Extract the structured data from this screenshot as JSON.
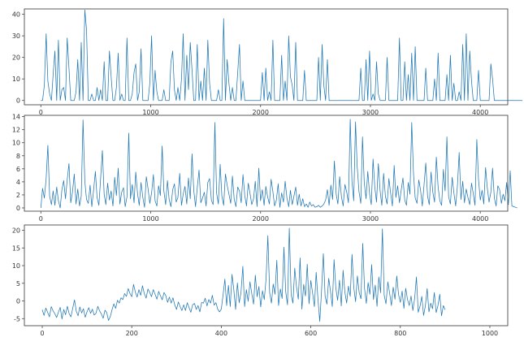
{
  "figure": {
    "background": "#ffffff",
    "line_color": "#1f77b4"
  },
  "chart_data": [
    {
      "type": "line",
      "title": "",
      "xlabel": "",
      "ylabel": "",
      "xlim": [
        -150,
        4250
      ],
      "ylim": [
        -2,
        42.5
      ],
      "xticks": [
        0,
        1000,
        2000,
        3000,
        4000
      ],
      "yticks": [
        0,
        10,
        20,
        30,
        40
      ],
      "x_start": 0,
      "x_step": 16,
      "values": [
        0,
        0,
        7,
        31,
        9,
        3,
        0,
        12,
        23,
        0,
        28,
        0,
        5,
        6,
        0,
        29,
        15,
        0,
        0,
        0,
        4,
        19,
        0,
        27,
        0,
        42,
        33,
        0,
        0,
        3,
        0,
        0,
        6,
        0,
        5,
        0,
        18,
        0,
        0,
        23,
        11,
        0,
        0,
        6,
        22,
        0,
        3,
        0,
        0,
        29,
        0,
        0,
        3,
        13,
        17,
        0,
        4,
        24,
        0,
        0,
        0,
        0,
        8,
        30,
        0,
        14,
        4,
        0,
        0,
        0,
        5,
        0,
        0,
        0,
        18,
        23,
        5,
        0,
        6,
        0,
        10,
        31,
        0,
        21,
        5,
        27,
        14,
        0,
        0,
        26,
        0,
        9,
        0,
        15,
        0,
        28,
        8,
        0,
        0,
        0,
        0,
        5,
        0,
        0,
        38,
        0,
        19,
        8,
        0,
        6,
        0,
        0,
        13,
        26,
        0,
        9,
        0,
        0,
        0,
        0,
        0,
        0,
        0,
        0,
        0,
        0,
        13,
        0,
        15,
        0,
        4,
        0,
        28,
        0,
        0,
        0,
        0,
        21,
        0,
        9,
        0,
        30,
        11,
        7,
        0,
        27,
        0,
        0,
        0,
        0,
        14,
        0,
        0,
        0,
        0,
        0,
        0,
        0,
        20,
        0,
        26,
        7,
        0,
        19,
        0,
        0,
        0,
        0,
        0,
        0,
        0,
        0,
        0,
        0,
        0,
        0,
        0,
        0,
        0,
        0,
        0,
        0,
        15,
        0,
        0,
        19,
        0,
        23,
        0,
        3,
        0,
        18,
        3,
        0,
        0,
        0,
        0,
        20,
        0,
        0,
        0,
        0,
        0,
        0,
        29,
        0,
        0,
        18,
        0,
        12,
        0,
        22,
        0,
        25,
        0,
        0,
        0,
        0,
        0,
        15,
        0,
        0,
        0,
        0,
        10,
        0,
        22,
        0,
        0,
        0,
        0,
        12,
        0,
        21,
        0,
        8,
        0,
        0,
        4,
        0,
        26,
        0,
        31,
        0,
        23,
        9,
        0,
        0,
        0,
        14,
        0,
        0,
        0,
        0,
        0,
        0,
        17,
        10,
        0,
        0,
        0,
        0,
        0,
        0,
        0,
        0,
        0,
        0,
        0,
        0,
        0,
        0,
        0,
        0,
        0
      ]
    },
    {
      "type": "line",
      "title": "",
      "xlabel": "",
      "ylabel": "",
      "xlim": [
        -150,
        4250
      ],
      "ylim": [
        -0.5,
        14.2
      ],
      "xticks": [
        0,
        1000,
        2000,
        3000,
        4000
      ],
      "yticks": [
        0,
        2,
        4,
        6,
        8,
        10,
        12,
        14
      ],
      "x_start": 0,
      "x_step": 16,
      "values": [
        0,
        3,
        1.5,
        4.5,
        9.6,
        1.8,
        0.5,
        2.6,
        0.4,
        3.2,
        1.1,
        0,
        2.8,
        4.2,
        1.4,
        4.3,
        6.8,
        0.8,
        2.4,
        5.2,
        0.6,
        2.9,
        0.3,
        1.8,
        13.5,
        4.1,
        1.3,
        0.7,
        3.5,
        0.2,
        2.7,
        5.6,
        1.6,
        0.4,
        4.4,
        8.8,
        2.1,
        0.5,
        3.8,
        1.2,
        2.6,
        0.3,
        4.7,
        1.9,
        6.1,
        0.6,
        2.4,
        3.1,
        0.2,
        1.7,
        11.5,
        1.4,
        3.6,
        0.8,
        5.5,
        2.2,
        0.4,
        3.9,
        1.6,
        0.1,
        4.8,
        2.9,
        0.7,
        2.3,
        5.1,
        1.1,
        0.3,
        3.4,
        1.9,
        9.5,
        2.6,
        0.5,
        4.2,
        1.3,
        0.2,
        2.8,
        3.7,
        0.9,
        1.6,
        5.3,
        0.4,
        2.1,
        3.3,
        0.6,
        4.6,
        1.4,
        8.3,
        2.7,
        0.2,
        3.1,
        5.8,
        0.8,
        1.5,
        2.4,
        0.3,
        3.9,
        4.5,
        1.2,
        0.5,
        13.1,
        2.3,
        0.6,
        6.7,
        1.8,
        0.4,
        5.2,
        3.5,
        2.1,
        0.7,
        4.9,
        1.3,
        0.2,
        3.2,
        2.6,
        0.8,
        5.1,
        1.9,
        0.3,
        3.8,
        2.2,
        0.5,
        1.4,
        4.1,
        0.2,
        6.1,
        1.1,
        2.8,
        0.4,
        3.3,
        1.7,
        0.6,
        4.4,
        2.5,
        0.3,
        1.2,
        3.7,
        0.1,
        2.3,
        0.9,
        4.1,
        1.5,
        0.2,
        2.7,
        0.5,
        1.8,
        3.2,
        0.4,
        2.1,
        0.3,
        1.4,
        0.2,
        0.6,
        0.1,
        0.9,
        0.3,
        0.5,
        0.1,
        0.2,
        0.4,
        0.1,
        0.3,
        0.6,
        1.2,
        2.8,
        0.4,
        3.5,
        1.3,
        7.2,
        2.1,
        0.6,
        4.8,
        1.7,
        0.3,
        3.6,
        2.4,
        0.8,
        13.6,
        4.2,
        1.1,
        13.2,
        6.3,
        2.5,
        0.7,
        10.9,
        3.8,
        1.4,
        5.6,
        2.2,
        0.5,
        7.5,
        3.1,
        0.9,
        6.8,
        2.6,
        0.4,
        5.3,
        1.8,
        0.6,
        4.5,
        2.3,
        0.3,
        6.5,
        1.6,
        3.4,
        0.8,
        2.7,
        4.6,
        1.2,
        0.4,
        3.9,
        2.1,
        13.1,
        5.2,
        1.5,
        0.7,
        4.3,
        2.8,
        0.3,
        3.6,
        6.9,
        1.8,
        0.5,
        5.5,
        2.4,
        0.9,
        7.8,
        3.2,
        1.1,
        0.4,
        5.9,
        2.6,
        10.9,
        1.7,
        0.6,
        4.7,
        2.3,
        0.3,
        3.5,
        8.5,
        1.3,
        4.1,
        0.8,
        2.9,
        1.6,
        0.5,
        3.8,
        2.2,
        0.4,
        10.5,
        4.4,
        1.2,
        2.7,
        0.6,
        6.2,
        3.1,
        0.9,
        2.4,
        6.1,
        1.5,
        0.3,
        3.4,
        2.8,
        0.7,
        2.1,
        1.1,
        3.9,
        0.5,
        5.7,
        0.3,
        0.2,
        0.1,
        0
      ]
    },
    {
      "type": "line",
      "title": "",
      "xlabel": "",
      "ylabel": "",
      "xlim": [
        -40,
        1040
      ],
      "ylim": [
        -7,
        21.5
      ],
      "xticks": [
        0,
        200,
        400,
        600,
        800,
        1000
      ],
      "yticks": [
        -5,
        0,
        5,
        10,
        15,
        20
      ],
      "x_start": 0,
      "x_step": 4,
      "values": [
        -2.5,
        -4.1,
        -2,
        -3.2,
        -4.5,
        -1.6,
        -2.8,
        -3.6,
        -4.7,
        -3.2,
        -1.8,
        -5.1,
        -2.4,
        -3.9,
        -1.5,
        -3.6,
        -4.5,
        -2.1,
        0.3,
        -2.9,
        -4.2,
        -1.7,
        -3.4,
        -2.2,
        -4.6,
        -3.1,
        -1.9,
        -3.5,
        -2.3,
        -4,
        -3.5,
        -1.5,
        -2.8,
        -3.7,
        -4.9,
        -2.6,
        -3.3,
        -5.5,
        -4.4,
        -2.4,
        -0.8,
        -2.1,
        0.2,
        -0.6,
        0.9,
        0.4,
        2.1,
        1.3,
        3.5,
        2.1,
        1.2,
        4.7,
        2.5,
        1.1,
        3.2,
        1.6,
        4.3,
        2.1,
        0.8,
        3.4,
        2.4,
        1.2,
        3.2,
        1.9,
        0.5,
        2.7,
        1.5,
        0.3,
        2.4,
        1.5,
        -0.4,
        1.1,
        -0.6,
        0.9,
        -1.1,
        -2.4,
        -0.3,
        -1.6,
        -2.7,
        -1.1,
        -2.7,
        -0.5,
        -1.9,
        -3.2,
        -1.1,
        -0.7,
        -2.4,
        -1.3,
        -3.1,
        -0.4,
        -0.6,
        0.8,
        -1.4,
        0.4,
        -0.6,
        1.6,
        -1.2,
        -0.5,
        -2.3,
        -3.1,
        -2.3,
        1.7,
        6.2,
        -1.3,
        4.4,
        -1.6,
        7.5,
        3.2,
        -2.4,
        5.1,
        -0.5,
        2.3,
        9.8,
        -1.6,
        3.2,
        -0.1,
        5.4,
        2.1,
        -0.9,
        7.3,
        1.2,
        4.1,
        -1.7,
        2.9,
        0.4,
        6.2,
        18.5,
        2.4,
        -0.6,
        4.8,
        1.9,
        11.5,
        -1.3,
        3.4,
        0.7,
        15.2,
        2.6,
        -1.1,
        20.6,
        1.7,
        -0.6,
        9.3,
        3.9,
        0.5,
        12.2,
        -2.3,
        4.7,
        1.4,
        10.4,
        -0.8,
        5.8,
        2.2,
        -1.6,
        8.1,
        0.5,
        -5.8,
        2.9,
        13.4,
        1.3,
        -0.9,
        6.4,
        2.8,
        -1.6,
        11.7,
        3.6,
        0.2,
        5.9,
        -1.4,
        8.7,
        2.5,
        -0.6,
        4.2,
        1.3,
        13.2,
        3.8,
        -0.2,
        7.1,
        2.4,
        0.6,
        16.3,
        3.6,
        -0.7,
        5.2,
        1.9,
        10.3,
        0.4,
        4.5,
        -1.5,
        6.8,
        2.3,
        20.4,
        1.6,
        -0.8,
        5.4,
        2.2,
        -1.3,
        3.9,
        0.5,
        7.1,
        1.8,
        -0.4,
        2.8,
        -2.1,
        3.6,
        0.4,
        -1.3,
        1.4,
        -2.7,
        0.7,
        6.8,
        -3.2,
        -1.5,
        1.3,
        -4.1,
        -1.4,
        3.5,
        -3.1,
        -0.6,
        -2.2,
        2.4,
        -3.3,
        -1.3,
        1.9,
        -4.2,
        -1.3,
        -2.5
      ]
    }
  ]
}
